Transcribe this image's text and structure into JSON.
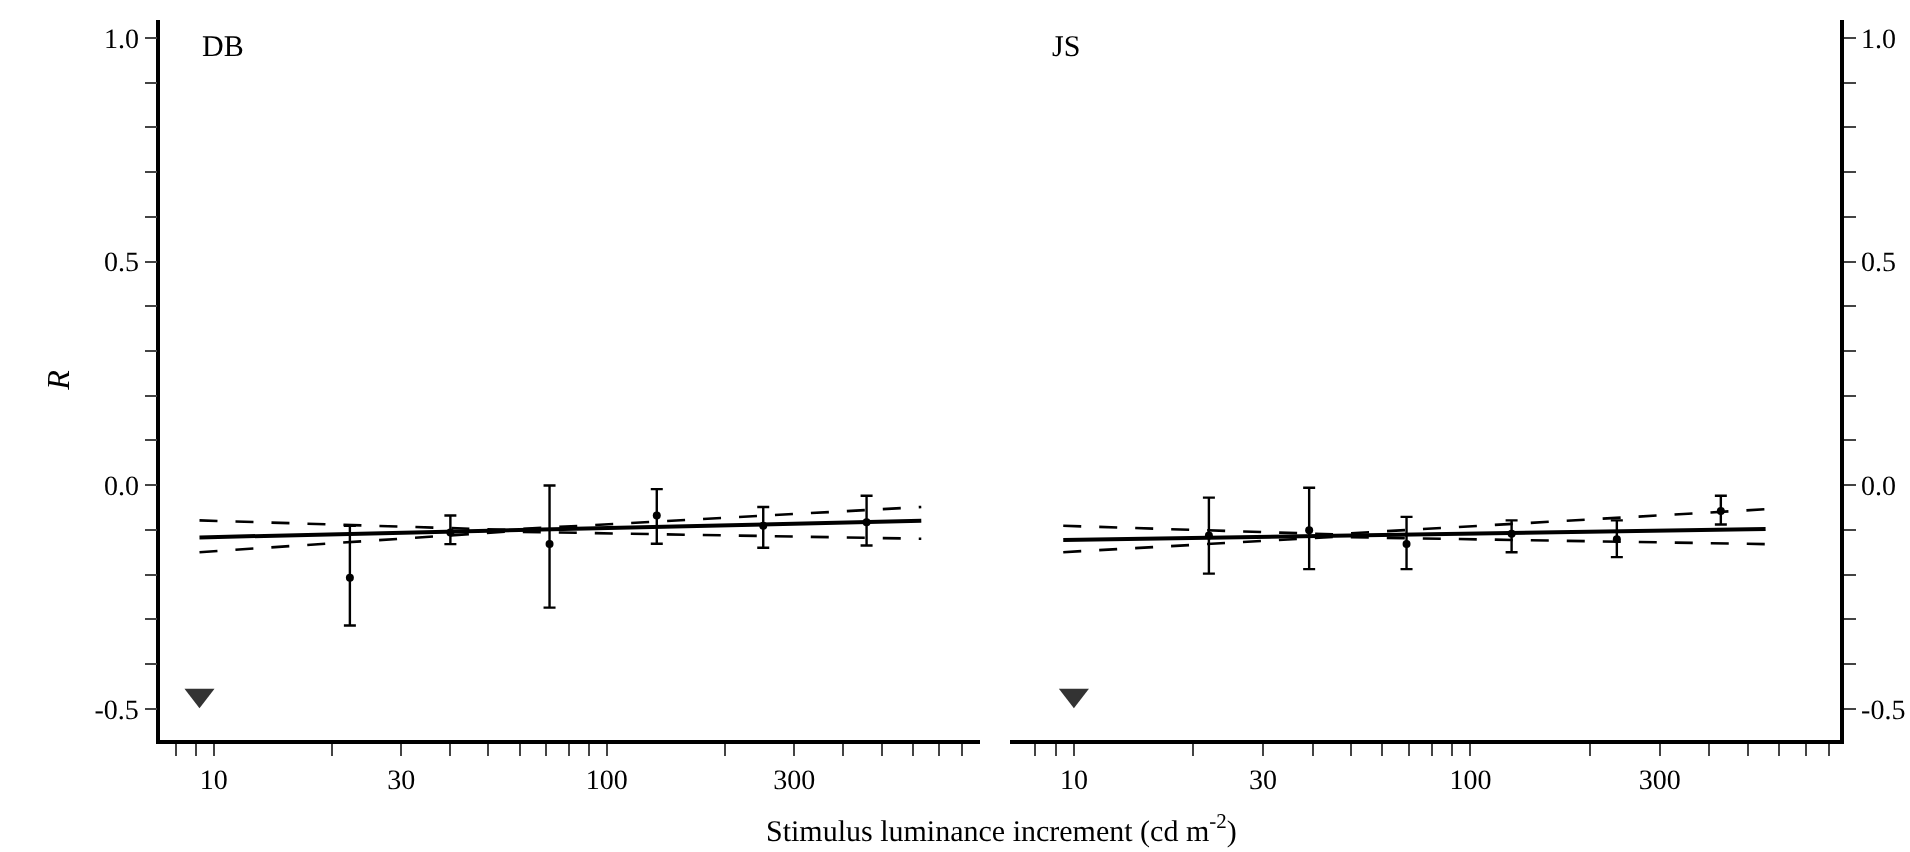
{
  "chart_data": [
    {
      "type": "scatter",
      "log": "x",
      "title": "DB",
      "ylabel": "R",
      "xlabel": "Stimulus luminance increment (cd m$^{-2}$)",
      "xlim": [
        7.3,
        890
      ],
      "xticks": [
        {
          "value": 8,
          "label": null
        },
        {
          "value": 9,
          "label": null
        },
        {
          "value": 10,
          "label": "10"
        },
        {
          "value": 20,
          "label": null
        },
        {
          "value": 30,
          "label": "30"
        },
        {
          "value": 40,
          "label": null
        },
        {
          "value": 50,
          "label": null
        },
        {
          "value": 60,
          "label": null
        },
        {
          "value": 70,
          "label": null
        },
        {
          "value": 80,
          "label": null
        },
        {
          "value": 90,
          "label": null
        },
        {
          "value": 100,
          "label": "100"
        },
        {
          "value": 200,
          "label": null
        },
        {
          "value": 300,
          "label": "300"
        },
        {
          "value": 400,
          "label": null
        },
        {
          "value": 500,
          "label": null
        },
        {
          "value": 600,
          "label": null
        },
        {
          "value": 700,
          "label": null
        },
        {
          "value": 800,
          "label": null
        }
      ],
      "ylim": [
        -0.57,
        1.04
      ],
      "yticks": [
        {
          "value": -0.5,
          "label": "-0.5"
        },
        {
          "value": -0.4,
          "label": null
        },
        {
          "value": -0.3,
          "label": null
        },
        {
          "value": -0.2,
          "label": null
        },
        {
          "value": -0.1,
          "label": null
        },
        {
          "value": 0.0,
          "label": "0.0"
        },
        {
          "value": 0.1,
          "label": null
        },
        {
          "value": 0.2,
          "label": null
        },
        {
          "value": 0.3,
          "label": null
        },
        {
          "value": 0.4,
          "label": null
        },
        {
          "value": 0.5,
          "label": "0.5"
        },
        {
          "value": 0.6,
          "label": null
        },
        {
          "value": 0.7,
          "label": null
        },
        {
          "value": 0.8,
          "label": null
        },
        {
          "value": 0.9,
          "label": null
        },
        {
          "value": 1.0,
          "label": "1.0"
        }
      ],
      "series": [
        {
          "type": "line",
          "color": "#000000",
          "line_style": "solid",
          "marker": "none",
          "x": [
            9.2,
            631
          ],
          "values": [
            -0.117,
            -0.08
          ]
        },
        {
          "type": "line",
          "color": "#000000",
          "line_style": "dashed",
          "marker": "none",
          "x": [
            9.2,
            55.6,
            631
          ],
          "values": [
            -0.079,
            -0.1,
            -0.049
          ]
        },
        {
          "type": "line",
          "color": "#000000",
          "line_style": "dashed",
          "marker": "none",
          "x": [
            9.2,
            55.6,
            631
          ],
          "values": [
            -0.15,
            -0.104,
            -0.12
          ]
        },
        {
          "type": "scatter",
          "color": "#000000",
          "marker": "circle",
          "x": [
            22.2,
            40,
            71.5,
            134,
            250,
            458
          ],
          "values": [
            -0.207,
            -0.106,
            -0.132,
            -0.068,
            -0.091,
            -0.083
          ],
          "errors": [
            [
              -0.314,
              -0.091
            ],
            [
              -0.132,
              -0.068
            ],
            [
              -0.274,
              -0.001
            ],
            [
              -0.131,
              -0.009
            ],
            [
              -0.14,
              -0.049
            ],
            [
              -0.135,
              -0.024
            ]
          ]
        },
        {
          "type": "scatter",
          "color": "#333333",
          "marker": "triangle",
          "x": [
            9.2
          ],
          "values": [
            -0.47
          ]
        }
      ]
    },
    {
      "type": "scatter",
      "log": "x",
      "title": "JS",
      "xlim": [
        6.9,
        855
      ],
      "xticks": [
        {
          "value": 8,
          "label": null
        },
        {
          "value": 9,
          "label": null
        },
        {
          "value": 10,
          "label": "10"
        },
        {
          "value": 20,
          "label": null
        },
        {
          "value": 30,
          "label": "30"
        },
        {
          "value": 40,
          "label": null
        },
        {
          "value": 50,
          "label": null
        },
        {
          "value": 60,
          "label": null
        },
        {
          "value": 70,
          "label": null
        },
        {
          "value": 80,
          "label": null
        },
        {
          "value": 90,
          "label": null
        },
        {
          "value": 100,
          "label": "100"
        },
        {
          "value": 200,
          "label": null
        },
        {
          "value": 300,
          "label": "300"
        },
        {
          "value": 400,
          "label": null
        },
        {
          "value": 500,
          "label": null
        },
        {
          "value": 600,
          "label": null
        },
        {
          "value": 700,
          "label": null
        },
        {
          "value": 800,
          "label": null
        }
      ],
      "y2lim": [
        -0.57,
        1.04
      ],
      "y2ticks": [
        {
          "value": -0.5,
          "label": "-0.5"
        },
        {
          "value": -0.4,
          "label": null
        },
        {
          "value": -0.3,
          "label": null
        },
        {
          "value": -0.2,
          "label": null
        },
        {
          "value": -0.1,
          "label": null
        },
        {
          "value": 0.0,
          "label": "0.0"
        },
        {
          "value": 0.1,
          "label": null
        },
        {
          "value": 0.2,
          "label": null
        },
        {
          "value": 0.3,
          "label": null
        },
        {
          "value": 0.4,
          "label": null
        },
        {
          "value": 0.5,
          "label": "0.5"
        },
        {
          "value": 0.6,
          "label": null
        },
        {
          "value": 0.7,
          "label": null
        },
        {
          "value": 0.8,
          "label": null
        },
        {
          "value": 0.9,
          "label": null
        },
        {
          "value": 1.0,
          "label": "1.0"
        }
      ],
      "series": [
        {
          "type": "line",
          "axis": "y2",
          "color": "#000000",
          "line_style": "solid",
          "marker": "none",
          "x": [
            9.4,
            555
          ],
          "values": [
            -0.123,
            -0.098
          ]
        },
        {
          "type": "line",
          "axis": "y2",
          "color": "#000000",
          "line_style": "dashed",
          "marker": "none",
          "x": [
            9.4,
            45,
            555
          ],
          "values": [
            -0.091,
            -0.11,
            -0.054
          ]
        },
        {
          "type": "line",
          "axis": "y2",
          "color": "#000000",
          "line_style": "dashed",
          "marker": "none",
          "x": [
            9.4,
            45,
            555
          ],
          "values": [
            -0.15,
            -0.116,
            -0.132
          ]
        },
        {
          "type": "scatter",
          "axis": "y2",
          "color": "#000000",
          "marker": "circle",
          "x": [
            21.9,
            39.2,
            69,
            127,
            234,
            428
          ],
          "values": [
            -0.113,
            -0.101,
            -0.132,
            -0.109,
            -0.121,
            -0.058
          ],
          "errors": [
            [
              -0.198,
              -0.028
            ],
            [
              -0.188,
              -0.006
            ],
            [
              -0.188,
              -0.071
            ],
            [
              -0.15,
              -0.079
            ],
            [
              -0.161,
              -0.079
            ],
            [
              -0.088,
              -0.024
            ]
          ]
        },
        {
          "type": "scatter",
          "axis": "y2",
          "color": "#333333",
          "marker": "triangle",
          "x": [
            10
          ],
          "values": [
            -0.47
          ]
        }
      ]
    }
  ]
}
